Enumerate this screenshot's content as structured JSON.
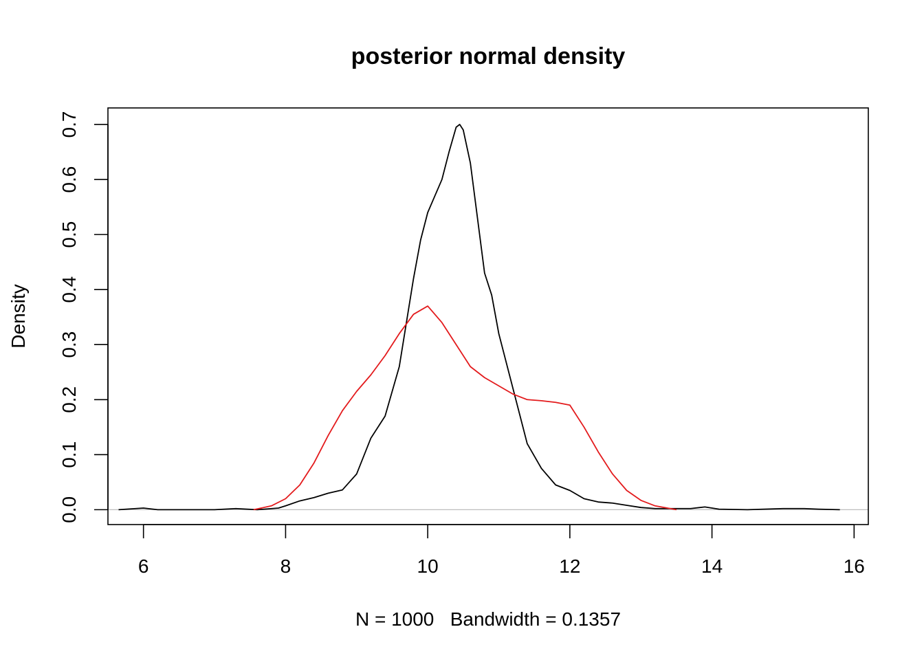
{
  "chart_data": {
    "type": "line",
    "title": "posterior normal density",
    "xlabel": "N = 1000   Bandwidth = 0.1357",
    "ylabel": "Density",
    "xlim": [
      5.5,
      16.2
    ],
    "ylim": [
      -0.027,
      0.73
    ],
    "x_ticks": [
      "6",
      "8",
      "10",
      "12",
      "14",
      "16"
    ],
    "y_ticks": [
      "0.0",
      "0.1",
      "0.2",
      "0.3",
      "0.4",
      "0.5",
      "0.6",
      "0.7"
    ],
    "grid": false,
    "zero_line": true,
    "series": [
      {
        "color": "#000000",
        "x": [
          5.65,
          6.0,
          6.2,
          6.5,
          7.0,
          7.3,
          7.6,
          7.9,
          8.0,
          8.2,
          8.4,
          8.6,
          8.8,
          9.0,
          9.2,
          9.4,
          9.6,
          9.8,
          9.9,
          10.0,
          10.1,
          10.2,
          10.3,
          10.4,
          10.45,
          10.5,
          10.6,
          10.7,
          10.8,
          10.9,
          11.0,
          11.2,
          11.4,
          11.6,
          11.8,
          11.9,
          12.0,
          12.2,
          12.4,
          12.6,
          12.8,
          13.0,
          13.2,
          13.5,
          13.7,
          13.9,
          14.1,
          14.5,
          15.0,
          15.3,
          15.5,
          15.8
        ],
        "y": [
          0.0,
          0.003,
          0.0,
          0.0,
          0.0,
          0.002,
          0.0,
          0.003,
          0.007,
          0.016,
          0.022,
          0.03,
          0.036,
          0.065,
          0.13,
          0.17,
          0.26,
          0.42,
          0.49,
          0.54,
          0.57,
          0.6,
          0.65,
          0.695,
          0.7,
          0.69,
          0.63,
          0.53,
          0.43,
          0.39,
          0.32,
          0.22,
          0.12,
          0.075,
          0.045,
          0.04,
          0.035,
          0.02,
          0.014,
          0.012,
          0.008,
          0.004,
          0.002,
          0.002,
          0.002,
          0.005,
          0.001,
          0.0,
          0.002,
          0.002,
          0.001,
          0.0
        ]
      },
      {
        "color": "#e31a1c",
        "x": [
          7.55,
          7.8,
          8.0,
          8.2,
          8.4,
          8.6,
          8.8,
          9.0,
          9.2,
          9.4,
          9.6,
          9.8,
          10.0,
          10.2,
          10.4,
          10.6,
          10.8,
          11.0,
          11.2,
          11.4,
          11.6,
          11.8,
          12.0,
          12.2,
          12.4,
          12.6,
          12.8,
          13.0,
          13.2,
          13.5
        ],
        "y": [
          0.0,
          0.007,
          0.02,
          0.045,
          0.085,
          0.135,
          0.18,
          0.215,
          0.245,
          0.28,
          0.32,
          0.355,
          0.37,
          0.34,
          0.3,
          0.26,
          0.24,
          0.225,
          0.21,
          0.2,
          0.198,
          0.195,
          0.19,
          0.15,
          0.105,
          0.065,
          0.035,
          0.017,
          0.007,
          0.0
        ]
      }
    ]
  }
}
